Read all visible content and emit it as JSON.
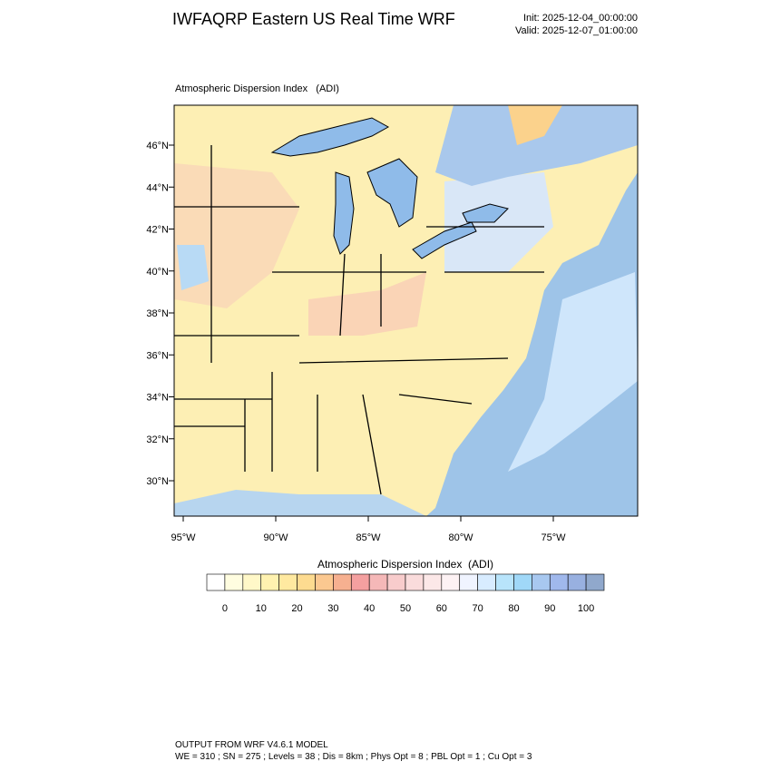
{
  "header": {
    "title": "IWFAQRP Eastern US Real Time WRF",
    "init": "Init: 2025-12-04_00:00:00",
    "valid": "Valid: 2025-12-07_01:00:00"
  },
  "map": {
    "title": "Atmospheric Dispersion Index   (ADI)",
    "lat_labels": [
      "46°N",
      "44°N",
      "42°N",
      "40°N",
      "38°N",
      "36°N",
      "34°N",
      "32°N",
      "30°N"
    ],
    "lon_labels": [
      "95°W",
      "90°W",
      "85°W",
      "80°W",
      "75°W"
    ]
  },
  "colorbar": {
    "title": "Atmospheric Dispersion Index  (ADI)",
    "lim": [
      -5,
      105
    ],
    "ticks": [
      0,
      10,
      20,
      30,
      40,
      50,
      60,
      70,
      80,
      90,
      100
    ],
    "colors": [
      "#ffffff",
      "#fffde0",
      "#fff8c8",
      "#fff2b0",
      "#ffe9a0",
      "#fddb90",
      "#fbc890",
      "#f6b090",
      "#f4a0a0",
      "#f5b8b8",
      "#f8cccc",
      "#fadcdc",
      "#fce8e8",
      "#fdf2f4",
      "#f0f4ff",
      "#d8ecff",
      "#b8e4fb",
      "#a0d8f8",
      "#a8c8f0",
      "#a0b8ec",
      "#98b0e0",
      "#90a8cc"
    ]
  },
  "footer": {
    "lines": [
      "OUTPUT FROM WRF V4.6.1 MODEL",
      "WE = 310 ; SN = 275 ; Levels = 38 ; Dis = 8km ; Phys Opt = 8 ; PBL Opt = 1 ; Cu Opt = 3"
    ]
  }
}
